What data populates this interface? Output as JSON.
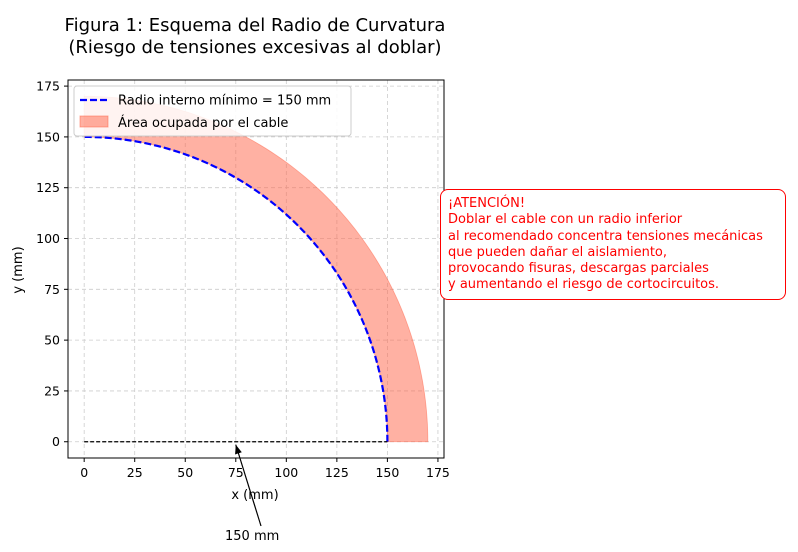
{
  "chart_data": {
    "type": "area",
    "title_line1": "Figura 1: Esquema del Radio de Curvatura",
    "title_line2": "(Riesgo de tensiones excesivas al doblar)",
    "xlabel": "x (mm)",
    "ylabel": "y (mm)",
    "xlim": [
      -8,
      178
    ],
    "ylim": [
      -8,
      178
    ],
    "xticks": [
      0,
      25,
      50,
      75,
      100,
      125,
      150,
      175
    ],
    "yticks": [
      0,
      25,
      50,
      75,
      100,
      125,
      150,
      175
    ],
    "grid": true,
    "legend_placement": "upper-left",
    "inner_radius": 150,
    "outer_radius": 170,
    "baseline": {
      "x": [
        0,
        150
      ],
      "y": [
        0,
        0
      ]
    },
    "series": [
      {
        "name": "Radio interno mínimo = 150 mm",
        "style": "dashed-line",
        "color": "#0000ff"
      },
      {
        "name": "Área ocupada por el cable",
        "style": "filled-area",
        "color": "#ff6347"
      }
    ],
    "annotation": {
      "text": "150 mm",
      "points_to": [
        75,
        0
      ]
    },
    "warning_box": {
      "lines": [
        "¡ATENCIÓN!",
        "Doblar el cable con un radio inferior",
        "al recomendado concentra tensiones mecánicas",
        "que pueden dañar el aislamiento,",
        "provocando fisuras, descargas parciales",
        "y aumentando el riesgo de cortocircuitos."
      ],
      "color": "#ff0000"
    }
  }
}
